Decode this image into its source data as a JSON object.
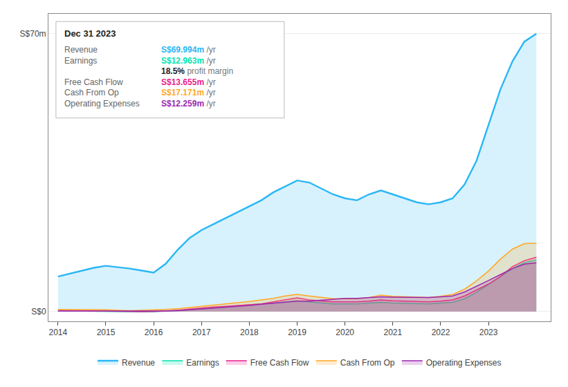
{
  "chart_data": {
    "type": "area",
    "x": [
      2014.0,
      2014.25,
      2014.5,
      2014.75,
      2015.0,
      2015.25,
      2015.5,
      2015.75,
      2016.0,
      2016.25,
      2016.5,
      2016.75,
      2017.0,
      2017.25,
      2017.5,
      2017.75,
      2018.0,
      2018.25,
      2018.5,
      2018.75,
      2019.0,
      2019.25,
      2019.5,
      2019.75,
      2020.0,
      2020.25,
      2020.5,
      2020.75,
      2021.0,
      2021.25,
      2021.5,
      2021.75,
      2022.0,
      2022.25,
      2022.5,
      2022.75,
      2023.0,
      2023.25,
      2023.5,
      2023.75,
      2024.0
    ],
    "series": [
      {
        "name": "Revenue",
        "color": "#29b6f6",
        "values": [
          8.8,
          9.5,
          10.2,
          11.0,
          11.5,
          11.2,
          10.8,
          10.3,
          9.8,
          12.0,
          15.5,
          18.5,
          20.5,
          22.0,
          23.5,
          25.0,
          26.5,
          28.0,
          30.0,
          31.5,
          33.0,
          32.5,
          31.0,
          29.5,
          28.5,
          28.0,
          29.5,
          30.5,
          29.5,
          28.5,
          27.5,
          27.0,
          27.5,
          28.5,
          32.0,
          38.0,
          47.0,
          56.0,
          63.0,
          68.0,
          70.0
        ]
      },
      {
        "name": "Earnings",
        "color": "#00e5b0",
        "values": [
          0.15,
          0.1,
          0.05,
          0.0,
          -0.05,
          -0.1,
          -0.15,
          -0.1,
          -0.05,
          0.05,
          0.2,
          0.4,
          0.6,
          0.9,
          1.1,
          1.4,
          1.7,
          1.9,
          2.1,
          2.4,
          2.7,
          2.4,
          2.1,
          1.9,
          1.9,
          1.9,
          2.1,
          2.3,
          2.1,
          2.0,
          1.9,
          1.9,
          2.1,
          2.3,
          3.2,
          4.8,
          6.8,
          8.8,
          10.8,
          12.3,
          12.96
        ]
      },
      {
        "name": "Free Cash Flow",
        "color": "#e91e8c",
        "values": [
          0.25,
          0.2,
          0.15,
          0.1,
          0.05,
          -0.05,
          -0.1,
          -0.05,
          0.0,
          0.1,
          0.3,
          0.6,
          0.9,
          1.1,
          1.3,
          1.5,
          1.7,
          1.9,
          2.4,
          2.9,
          3.4,
          2.9,
          2.7,
          2.4,
          2.4,
          2.4,
          2.6,
          2.9,
          2.7,
          2.6,
          2.4,
          2.4,
          2.6,
          2.9,
          3.9,
          5.4,
          6.9,
          8.8,
          11.3,
          12.8,
          13.66
        ]
      },
      {
        "name": "Cash From Op",
        "color": "#ffa726",
        "values": [
          0.5,
          0.5,
          0.5,
          0.45,
          0.4,
          0.3,
          0.2,
          0.3,
          0.35,
          0.5,
          0.7,
          1.0,
          1.3,
          1.5,
          1.8,
          2.1,
          2.5,
          2.9,
          3.3,
          3.9,
          4.3,
          3.9,
          3.5,
          3.2,
          3.2,
          3.2,
          3.5,
          4.1,
          3.8,
          3.7,
          3.5,
          3.5,
          3.8,
          4.3,
          5.6,
          7.7,
          10.2,
          13.2,
          15.7,
          17.1,
          17.17
        ]
      },
      {
        "name": "Operating Expenses",
        "color": "#9c27b0",
        "values": [
          0.1,
          0.1,
          0.1,
          0.1,
          0.1,
          0.1,
          0.05,
          0.05,
          0.05,
          0.1,
          0.2,
          0.4,
          0.6,
          0.8,
          1.0,
          1.2,
          1.5,
          1.8,
          2.1,
          2.4,
          2.6,
          2.6,
          2.8,
          3.1,
          3.3,
          3.3,
          3.5,
          3.7,
          3.6,
          3.6,
          3.5,
          3.5,
          3.7,
          3.9,
          4.9,
          6.3,
          7.8,
          9.3,
          10.8,
          11.9,
          12.26
        ]
      }
    ],
    "xlim": [
      2013.8,
      2024.3
    ],
    "xticks": [
      2014,
      2015,
      2016,
      2017,
      2018,
      2019,
      2020,
      2021,
      2022,
      2023
    ],
    "ylim": [
      -2.5,
      75
    ],
    "yticks": [
      {
        "value": 0,
        "label": "S$0"
      },
      {
        "value": 70,
        "label": "S$70m"
      }
    ],
    "grid": true,
    "legend": "bottom",
    "annotations": [
      {
        "text": "Dec 31 2023"
      },
      {
        "label": "Revenue",
        "text": "S$69.994m",
        "suffix": "/yr"
      },
      {
        "label": "Earnings",
        "text": "S$12.963m",
        "suffix": "/yr"
      },
      {
        "text": "18.5%",
        "suffix": "profit margin"
      },
      {
        "label": "Free Cash Flow",
        "text": "S$13.655m",
        "suffix": "/yr"
      },
      {
        "label": "Cash From Op",
        "text": "S$17.171m",
        "suffix": "/yr"
      },
      {
        "label": "Operating Expenses",
        "text": "S$12.259m",
        "suffix": "/yr"
      }
    ]
  }
}
